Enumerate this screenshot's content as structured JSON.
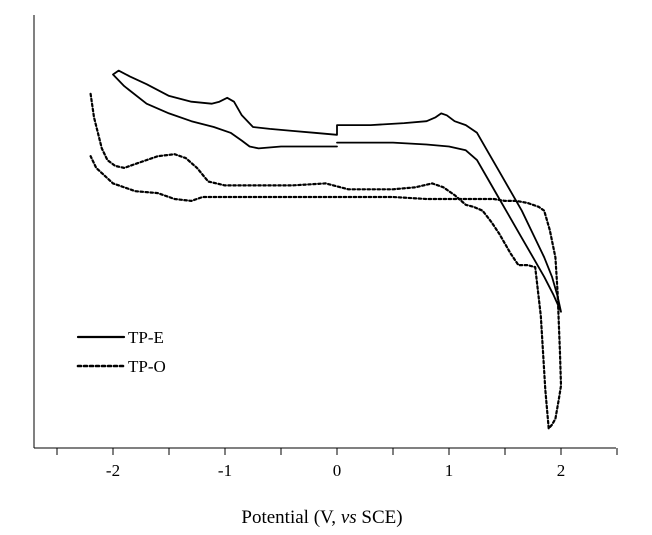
{
  "chart_data": {
    "type": "line",
    "title": "",
    "xlabel_parts": [
      "Potential (V, ",
      "vs",
      " SCE)"
    ],
    "ylabel": "",
    "xlim": [
      -2.5,
      2.5
    ],
    "ylim": [
      -1.2,
      1.0
    ],
    "x_ticks": [
      -2,
      -1,
      0,
      1,
      2
    ],
    "x_tick_labels": [
      "-2",
      "-1",
      "0",
      "1",
      "2"
    ],
    "grid": false,
    "legend_position": "lower-left",
    "series": [
      {
        "name": "TP-E",
        "style": "solid",
        "x": [
          0.0,
          -0.2,
          -0.5,
          -0.7,
          -0.78,
          -0.85,
          -0.95,
          -1.1,
          -1.3,
          -1.5,
          -1.7,
          -1.9,
          -2.0,
          -1.95,
          -1.85,
          -1.7,
          -1.5,
          -1.3,
          -1.12,
          -1.05,
          -0.98,
          -0.92,
          -0.85,
          -0.75,
          -0.6,
          -0.4,
          -0.2,
          0.0,
          0.0,
          0.3,
          0.6,
          0.8,
          0.88,
          0.93,
          0.98,
          1.05,
          1.15,
          1.25,
          1.35,
          1.45,
          1.55,
          1.65,
          1.75,
          1.85,
          1.92,
          1.97,
          2.0,
          1.93,
          1.85,
          1.75,
          1.65,
          1.55,
          1.45,
          1.35,
          1.25,
          1.15,
          1.0,
          0.8,
          0.5,
          0.0
        ],
        "y": [
          0.35,
          0.35,
          0.35,
          0.34,
          0.35,
          0.38,
          0.42,
          0.45,
          0.48,
          0.52,
          0.57,
          0.66,
          0.72,
          0.74,
          0.71,
          0.67,
          0.61,
          0.58,
          0.57,
          0.58,
          0.6,
          0.58,
          0.51,
          0.45,
          0.44,
          0.43,
          0.42,
          0.41,
          0.46,
          0.46,
          0.47,
          0.48,
          0.5,
          0.52,
          0.51,
          0.48,
          0.46,
          0.42,
          0.32,
          0.22,
          0.12,
          0.02,
          -0.1,
          -0.22,
          -0.32,
          -0.42,
          -0.5,
          -0.41,
          -0.32,
          -0.22,
          -0.12,
          -0.02,
          0.08,
          0.18,
          0.28,
          0.33,
          0.35,
          0.36,
          0.37,
          0.37
        ]
      },
      {
        "name": "TP-O",
        "style": "dotted",
        "x": [
          -2.2,
          -2.17,
          -2.1,
          -2.05,
          -1.98,
          -1.9,
          -1.75,
          -1.6,
          -1.45,
          -1.35,
          -1.25,
          -1.15,
          -1.0,
          -0.7,
          -0.4,
          -0.1,
          0.1,
          0.3,
          0.5,
          0.7,
          0.85,
          0.95,
          1.05,
          1.15,
          1.22,
          1.3,
          1.38,
          1.45,
          1.55,
          1.62,
          1.7,
          1.77,
          1.82,
          1.86,
          1.89,
          1.92,
          1.95,
          1.98,
          2.0,
          1.99,
          1.97,
          1.95,
          1.9,
          1.85,
          1.8,
          1.7,
          1.6,
          1.5,
          1.4,
          1.3,
          1.2,
          1.1,
          1.0,
          0.8,
          0.5,
          0.2,
          0.0,
          -0.3,
          -0.6,
          -0.9,
          -1.2,
          -1.3,
          -1.45,
          -1.6,
          -1.8,
          -2.0,
          -2.15,
          -2.2
        ],
        "y": [
          0.62,
          0.5,
          0.34,
          0.28,
          0.25,
          0.24,
          0.27,
          0.3,
          0.31,
          0.29,
          0.24,
          0.17,
          0.15,
          0.15,
          0.15,
          0.16,
          0.13,
          0.13,
          0.13,
          0.14,
          0.16,
          0.14,
          0.1,
          0.05,
          0.04,
          0.02,
          -0.04,
          -0.1,
          -0.2,
          -0.26,
          -0.26,
          -0.27,
          -0.52,
          -0.9,
          -1.1,
          -1.08,
          -1.05,
          -0.95,
          -0.88,
          -0.7,
          -0.4,
          -0.22,
          -0.08,
          0.02,
          0.04,
          0.06,
          0.07,
          0.07,
          0.08,
          0.08,
          0.08,
          0.08,
          0.08,
          0.08,
          0.09,
          0.09,
          0.09,
          0.09,
          0.09,
          0.09,
          0.09,
          0.07,
          0.08,
          0.11,
          0.12,
          0.16,
          0.24,
          0.3
        ]
      }
    ]
  }
}
